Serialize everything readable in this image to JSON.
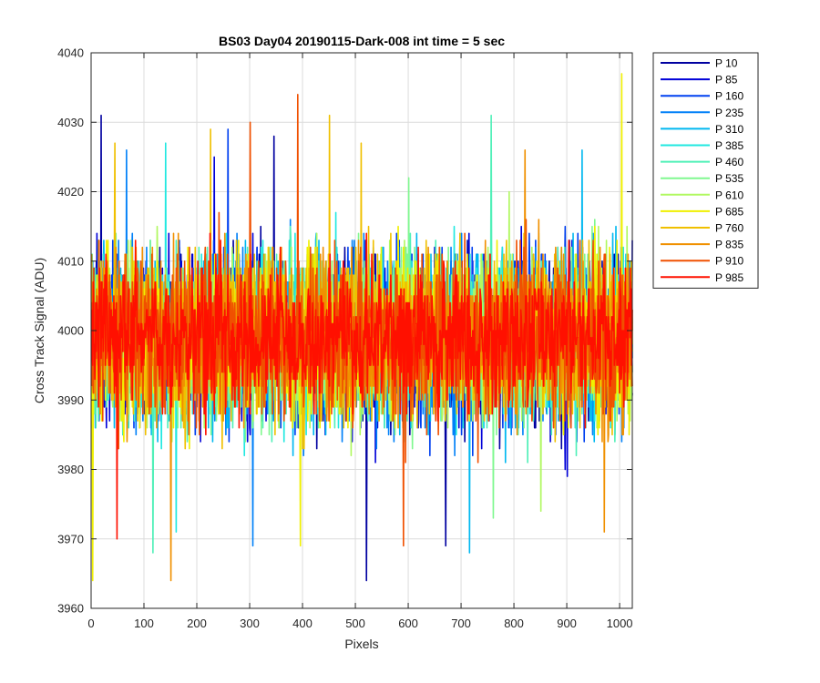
{
  "chart_data": {
    "type": "line",
    "title": "BS03 Day04 20190115-Dark-008 int time = 5 sec",
    "xlabel": "Pixels",
    "ylabel": "Cross Track Signal (ADU)",
    "xlim": [
      0,
      1024
    ],
    "ylim": [
      3960,
      4040
    ],
    "xticks": [
      0,
      100,
      200,
      300,
      400,
      500,
      600,
      700,
      800,
      900,
      1000
    ],
    "yticks": [
      3960,
      3970,
      3980,
      3990,
      4000,
      4010,
      4020,
      4030,
      4040
    ],
    "grid": true,
    "legend_position": "outside-top-right",
    "points_per_series": 1024,
    "series": [
      {
        "name": "P 10",
        "color": "#0000A0",
        "mean": 3999,
        "spread": 6.0,
        "peaks": [
          {
            "x": 18,
            "y": 4031
          },
          {
            "x": 520,
            "y": 3964
          },
          {
            "x": 670,
            "y": 3969
          },
          {
            "x": 345,
            "y": 4028
          }
        ]
      },
      {
        "name": "P 85",
        "color": "#0000D8",
        "mean": 3999,
        "spread": 6.0,
        "peaks": [
          {
            "x": 232,
            "y": 4025
          },
          {
            "x": 900,
            "y": 3979
          }
        ]
      },
      {
        "name": "P 160",
        "color": "#0040F0",
        "mean": 3999,
        "spread": 6.0,
        "peaks": [
          {
            "x": 258,
            "y": 4029
          },
          {
            "x": 640,
            "y": 3982
          }
        ]
      },
      {
        "name": "P 235",
        "color": "#0080F8",
        "mean": 3999,
        "spread": 6.0,
        "peaks": [
          {
            "x": 305,
            "y": 3969
          },
          {
            "x": 66,
            "y": 4026
          }
        ]
      },
      {
        "name": "P 310",
        "color": "#00B8F0",
        "mean": 3999,
        "spread": 6.0,
        "peaks": [
          {
            "x": 715,
            "y": 3968
          },
          {
            "x": 928,
            "y": 4026
          }
        ]
      },
      {
        "name": "P 385",
        "color": "#20E8E0",
        "mean": 3999,
        "spread": 6.0,
        "peaks": [
          {
            "x": 140,
            "y": 4027
          },
          {
            "x": 160,
            "y": 3971
          }
        ]
      },
      {
        "name": "P 460",
        "color": "#50F0B8",
        "mean": 3999,
        "spread": 6.0,
        "peaks": [
          {
            "x": 756,
            "y": 4031
          },
          {
            "x": 116,
            "y": 3968
          }
        ]
      },
      {
        "name": "P 535",
        "color": "#80F890",
        "mean": 3999,
        "spread": 6.0,
        "peaks": [
          {
            "x": 600,
            "y": 4022
          },
          {
            "x": 760,
            "y": 3973
          }
        ]
      },
      {
        "name": "P 610",
        "color": "#B0F860",
        "mean": 3999,
        "spread": 6.0,
        "peaks": [
          {
            "x": 790,
            "y": 4020
          },
          {
            "x": 850,
            "y": 3974
          }
        ]
      },
      {
        "name": "P 685",
        "color": "#F0F000",
        "mean": 3999,
        "spread": 6.0,
        "peaks": [
          {
            "x": 1003,
            "y": 4037
          },
          {
            "x": 2,
            "y": 3964
          },
          {
            "x": 395,
            "y": 3969
          }
        ]
      },
      {
        "name": "P 760",
        "color": "#F0C000",
        "mean": 3999,
        "spread": 6.0,
        "peaks": [
          {
            "x": 44,
            "y": 4027
          },
          {
            "x": 450,
            "y": 4031
          },
          {
            "x": 510,
            "y": 4027
          },
          {
            "x": 225,
            "y": 4029
          }
        ]
      },
      {
        "name": "P 835",
        "color": "#F09000",
        "mean": 3999,
        "spread": 6.0,
        "peaks": [
          {
            "x": 150,
            "y": 3964
          },
          {
            "x": 820,
            "y": 4026
          },
          {
            "x": 970,
            "y": 3971
          }
        ]
      },
      {
        "name": "P 910",
        "color": "#F05000",
        "mean": 3999,
        "spread": 6.0,
        "peaks": [
          {
            "x": 390,
            "y": 4034
          },
          {
            "x": 590,
            "y": 3969
          },
          {
            "x": 300,
            "y": 4030
          }
        ]
      },
      {
        "name": "P 985",
        "color": "#FF1000",
        "mean": 3999,
        "spread": 5.0,
        "peaks": [
          {
            "x": 48,
            "y": 3970
          },
          {
            "x": 520,
            "y": 4014
          }
        ]
      }
    ]
  }
}
